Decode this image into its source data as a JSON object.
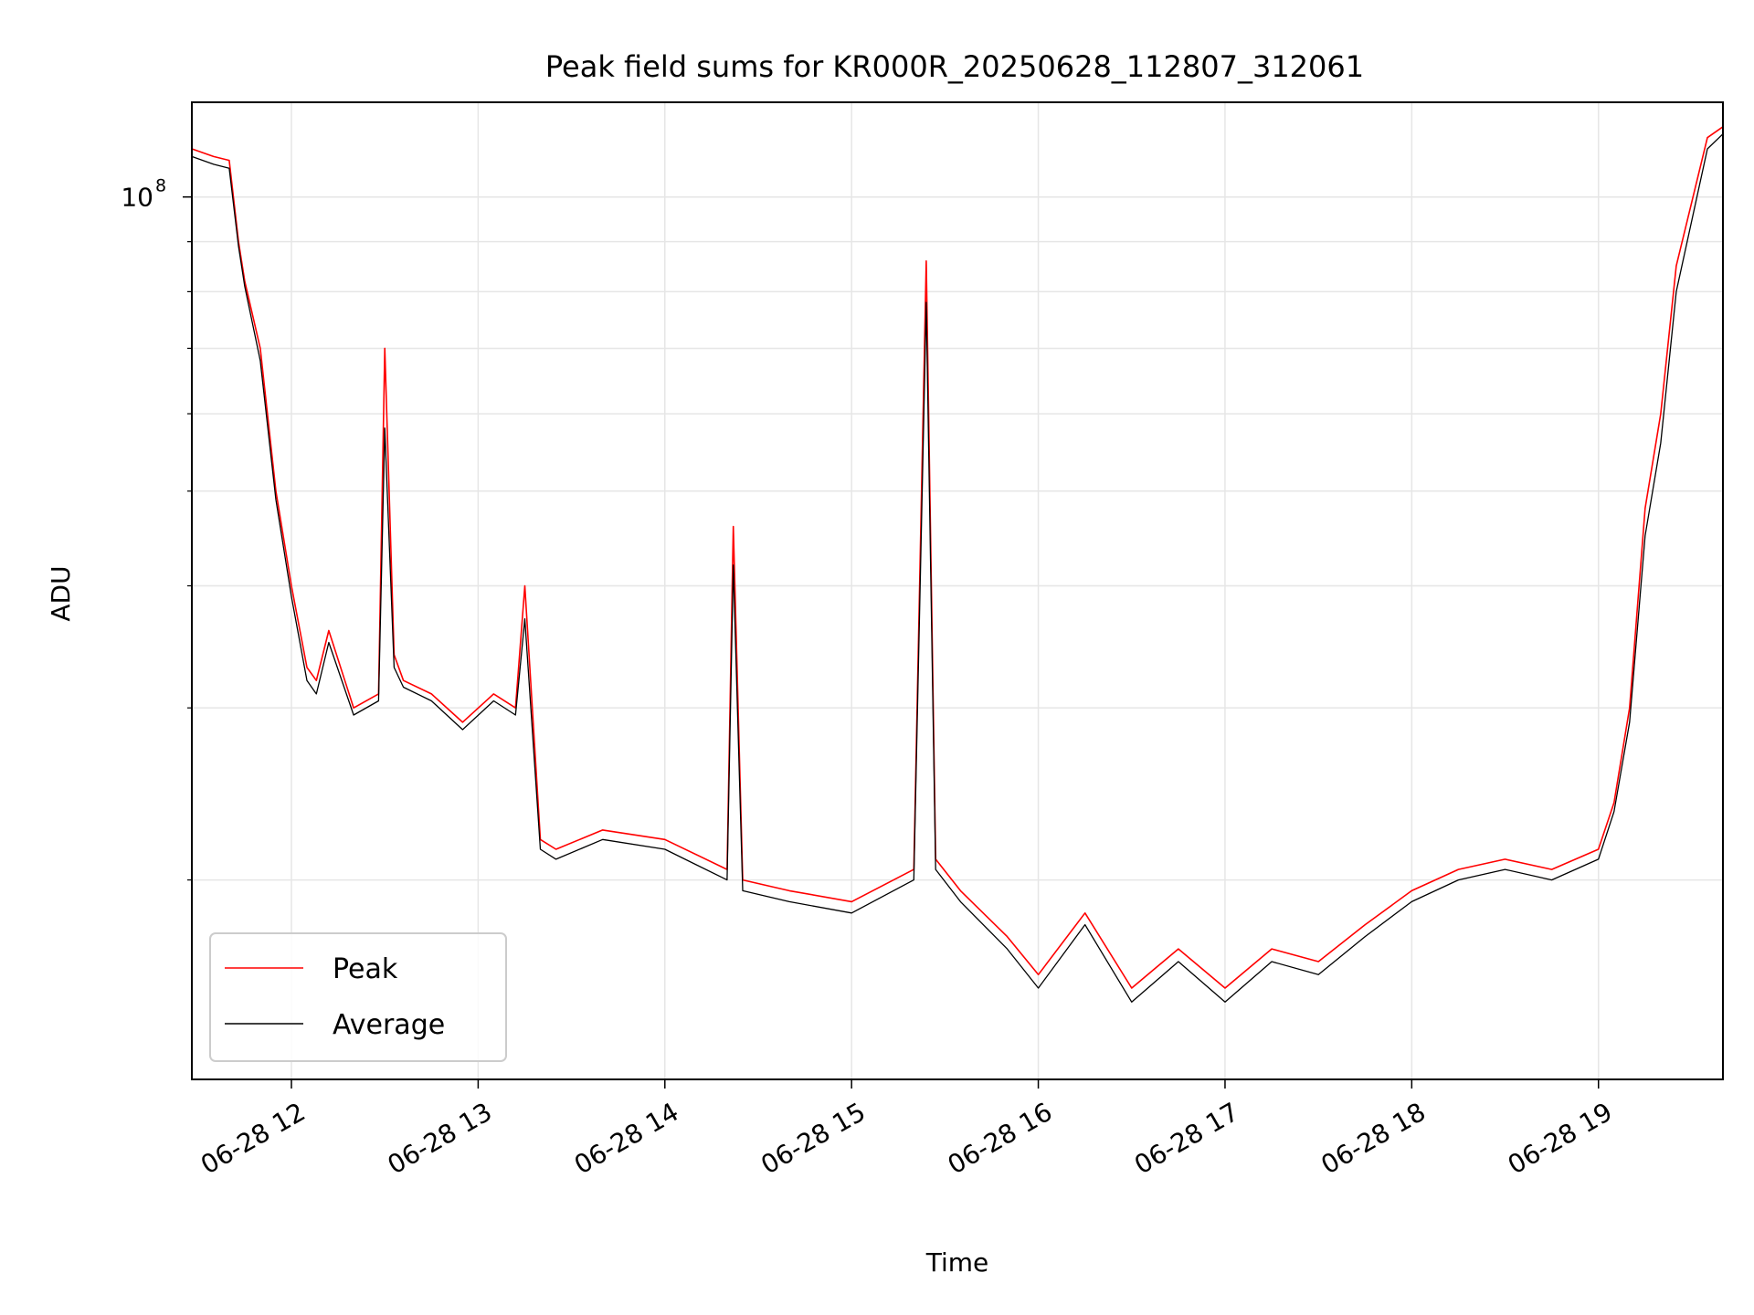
{
  "chart_data": {
    "type": "line",
    "title": "Peak field sums for KR000R_20250628_112807_312061",
    "xlabel": "Time",
    "ylabel": "ADU",
    "yscale": "log",
    "grid": true,
    "legend_position": "lower-left",
    "xlim": [
      "2025-06-28 11:28",
      "2025-06-28 19:40"
    ],
    "ylim": [
      12500000,
      125000000
    ],
    "x_ticks": [
      "2025-06-28 12:00",
      "2025-06-28 13:00",
      "2025-06-28 14:00",
      "2025-06-28 15:00",
      "2025-06-28 16:00",
      "2025-06-28 17:00",
      "2025-06-28 18:00",
      "2025-06-28 19:00"
    ],
    "x_tick_labels": [
      "06-28 12",
      "06-28 13",
      "06-28 14",
      "06-28 15",
      "06-28 16",
      "06-28 17",
      "06-28 18",
      "06-28 19"
    ],
    "y_tick_major": {
      "value": 100000000,
      "base": "10",
      "exponent": "8"
    },
    "y_minor_ticks": [
      20000000,
      30000000,
      40000000,
      50000000,
      60000000,
      70000000,
      80000000,
      90000000
    ],
    "x": [
      "2025-06-28 11:28",
      "2025-06-28 11:35",
      "2025-06-28 11:40",
      "2025-06-28 11:43",
      "2025-06-28 11:45",
      "2025-06-28 11:50",
      "2025-06-28 11:55",
      "2025-06-28 12:00",
      "2025-06-28 12:05",
      "2025-06-28 12:08",
      "2025-06-28 12:12",
      "2025-06-28 12:20",
      "2025-06-28 12:28",
      "2025-06-28 12:30",
      "2025-06-28 12:33",
      "2025-06-28 12:36",
      "2025-06-28 12:45",
      "2025-06-28 12:55",
      "2025-06-28 13:05",
      "2025-06-28 13:12",
      "2025-06-28 13:15",
      "2025-06-28 13:20",
      "2025-06-28 13:25",
      "2025-06-28 13:40",
      "2025-06-28 14:00",
      "2025-06-28 14:20",
      "2025-06-28 14:22",
      "2025-06-28 14:25",
      "2025-06-28 14:40",
      "2025-06-28 15:00",
      "2025-06-28 15:20",
      "2025-06-28 15:24",
      "2025-06-28 15:27",
      "2025-06-28 15:35",
      "2025-06-28 15:50",
      "2025-06-28 16:00",
      "2025-06-28 16:15",
      "2025-06-28 16:30",
      "2025-06-28 16:45",
      "2025-06-28 17:00",
      "2025-06-28 17:15",
      "2025-06-28 17:30",
      "2025-06-28 17:45",
      "2025-06-28 18:00",
      "2025-06-28 18:15",
      "2025-06-28 18:30",
      "2025-06-28 18:45",
      "2025-06-28 19:00",
      "2025-06-28 19:05",
      "2025-06-28 19:10",
      "2025-06-28 19:15",
      "2025-06-28 19:20",
      "2025-06-28 19:25",
      "2025-06-28 19:35",
      "2025-06-28 19:40"
    ],
    "series": [
      {
        "name": "Peak",
        "color": "#ff0000",
        "values": [
          112000000,
          110000000,
          109000000,
          90000000,
          82000000,
          70000000,
          50000000,
          40000000,
          33000000,
          32000000,
          36000000,
          30000000,
          31000000,
          70000000,
          34000000,
          32000000,
          31000000,
          29000000,
          31000000,
          30000000,
          40000000,
          22000000,
          21500000,
          22500000,
          22000000,
          20500000,
          46000000,
          20000000,
          19500000,
          19000000,
          20500000,
          86000000,
          21000000,
          19500000,
          17500000,
          16000000,
          18500000,
          15500000,
          17000000,
          15500000,
          17000000,
          16500000,
          18000000,
          19500000,
          20500000,
          21000000,
          20500000,
          21500000,
          24000000,
          30000000,
          48000000,
          60000000,
          85000000,
          115000000,
          118000000
        ]
      },
      {
        "name": "Average",
        "color": "#000000",
        "values": [
          110000000,
          108000000,
          107000000,
          89000000,
          81000000,
          68000000,
          49000000,
          39000000,
          32000000,
          31000000,
          35000000,
          29500000,
          30500000,
          58000000,
          33000000,
          31500000,
          30500000,
          28500000,
          30500000,
          29500000,
          37000000,
          21500000,
          21000000,
          22000000,
          21500000,
          20000000,
          42000000,
          19500000,
          19000000,
          18500000,
          20000000,
          78000000,
          20500000,
          19000000,
          17000000,
          15500000,
          18000000,
          15000000,
          16500000,
          15000000,
          16500000,
          16000000,
          17500000,
          19000000,
          20000000,
          20500000,
          20000000,
          21000000,
          23500000,
          29000000,
          45000000,
          56000000,
          80000000,
          112000000,
          116000000
        ]
      }
    ]
  }
}
